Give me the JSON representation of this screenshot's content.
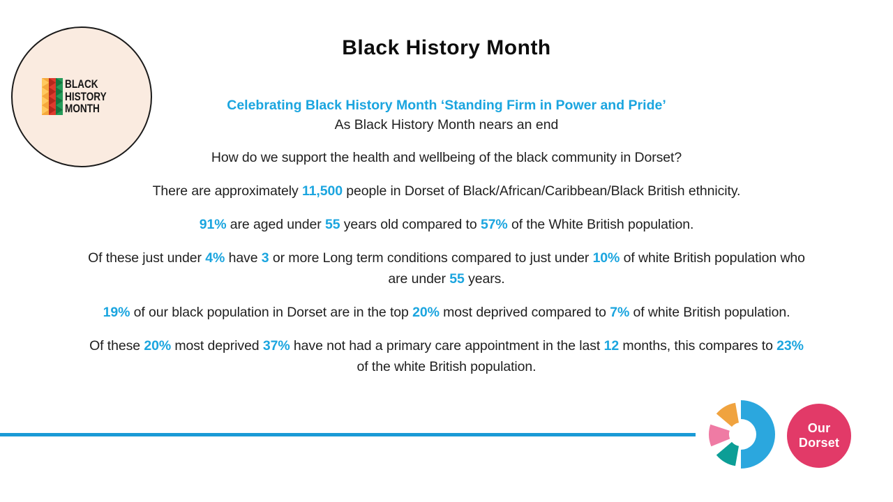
{
  "header": {
    "title": "Black History Month"
  },
  "subtitle": {
    "line1": "Celebrating Black History Month ‘Standing Firm in Power and Pride’",
    "line2": "As Black History Month nears an end"
  },
  "bhm_logo": {
    "lines": [
      "BLACK",
      "HISTORY",
      "MONTH"
    ]
  },
  "paragraphs": [
    {
      "segments": [
        {
          "text": "How do we support the health and wellbeing of the black community in Dorset?",
          "highlight": false
        }
      ]
    },
    {
      "segments": [
        {
          "text": "There are approximately ",
          "highlight": false
        },
        {
          "text": "11,500",
          "highlight": true
        },
        {
          "text": " people in Dorset of Black/African/Caribbean/Black British ethnicity.",
          "highlight": false
        }
      ]
    },
    {
      "segments": [
        {
          "text": "91%",
          "highlight": true
        },
        {
          "text": " are aged under ",
          "highlight": false
        },
        {
          "text": "55",
          "highlight": true
        },
        {
          "text": " years old compared to ",
          "highlight": false
        },
        {
          "text": "57%",
          "highlight": true
        },
        {
          "text": " of the White British population.",
          "highlight": false
        }
      ]
    },
    {
      "segments": [
        {
          "text": "Of these just under ",
          "highlight": false
        },
        {
          "text": "4%",
          "highlight": true
        },
        {
          "text": " have ",
          "highlight": false
        },
        {
          "text": "3",
          "highlight": true
        },
        {
          "text": " or more Long term conditions compared to just under ",
          "highlight": false
        },
        {
          "text": "10%",
          "highlight": true
        },
        {
          "text": " of white British population who",
          "highlight": false
        },
        {
          "break": true
        },
        {
          "text": "are under ",
          "highlight": false
        },
        {
          "text": "55",
          "highlight": true
        },
        {
          "text": " years.",
          "highlight": false
        }
      ]
    },
    {
      "segments": [
        {
          "text": "19%",
          "highlight": true
        },
        {
          "text": " of our black population in Dorset are in the top ",
          "highlight": false
        },
        {
          "text": "20%",
          "highlight": true
        },
        {
          "text": " most deprived compared to ",
          "highlight": false
        },
        {
          "text": "7%",
          "highlight": true
        },
        {
          "text": " of white British population.",
          "highlight": false
        }
      ]
    },
    {
      "segments": [
        {
          "text": "Of these ",
          "highlight": false
        },
        {
          "text": "20%",
          "highlight": true
        },
        {
          "text": " most deprived ",
          "highlight": false
        },
        {
          "text": "37%",
          "highlight": true
        },
        {
          "text": " have not had a primary care appointment in the last ",
          "highlight": false
        },
        {
          "text": "12",
          "highlight": true
        },
        {
          "text": " months, this compares to ",
          "highlight": false
        },
        {
          "text": "23%",
          "highlight": true
        },
        {
          "break": true
        },
        {
          "text": "of the white British population.",
          "highlight": false
        }
      ]
    }
  ],
  "footer": {
    "our_dorset_line1": "Our",
    "our_dorset_line2": "Dorset"
  },
  "colors": {
    "highlight": "#1BA5DF",
    "rule": "#1A9AD6",
    "donut_blue": "#2BA7DE",
    "wedge_orange": "#F0A33F",
    "wedge_pink": "#EF7BA4",
    "wedge_teal": "#0C9E96",
    "od_circle": "#E23A68",
    "logo_bg": "#FAEBE0",
    "stripe_yellow": "#F5A83C",
    "stripe_yellow_tri": "#FFC95F",
    "stripe_red": "#DF3B2E",
    "stripe_red_tri": "#B5271C",
    "stripe_green": "#259A59",
    "stripe_green_tri": "#14753F"
  }
}
